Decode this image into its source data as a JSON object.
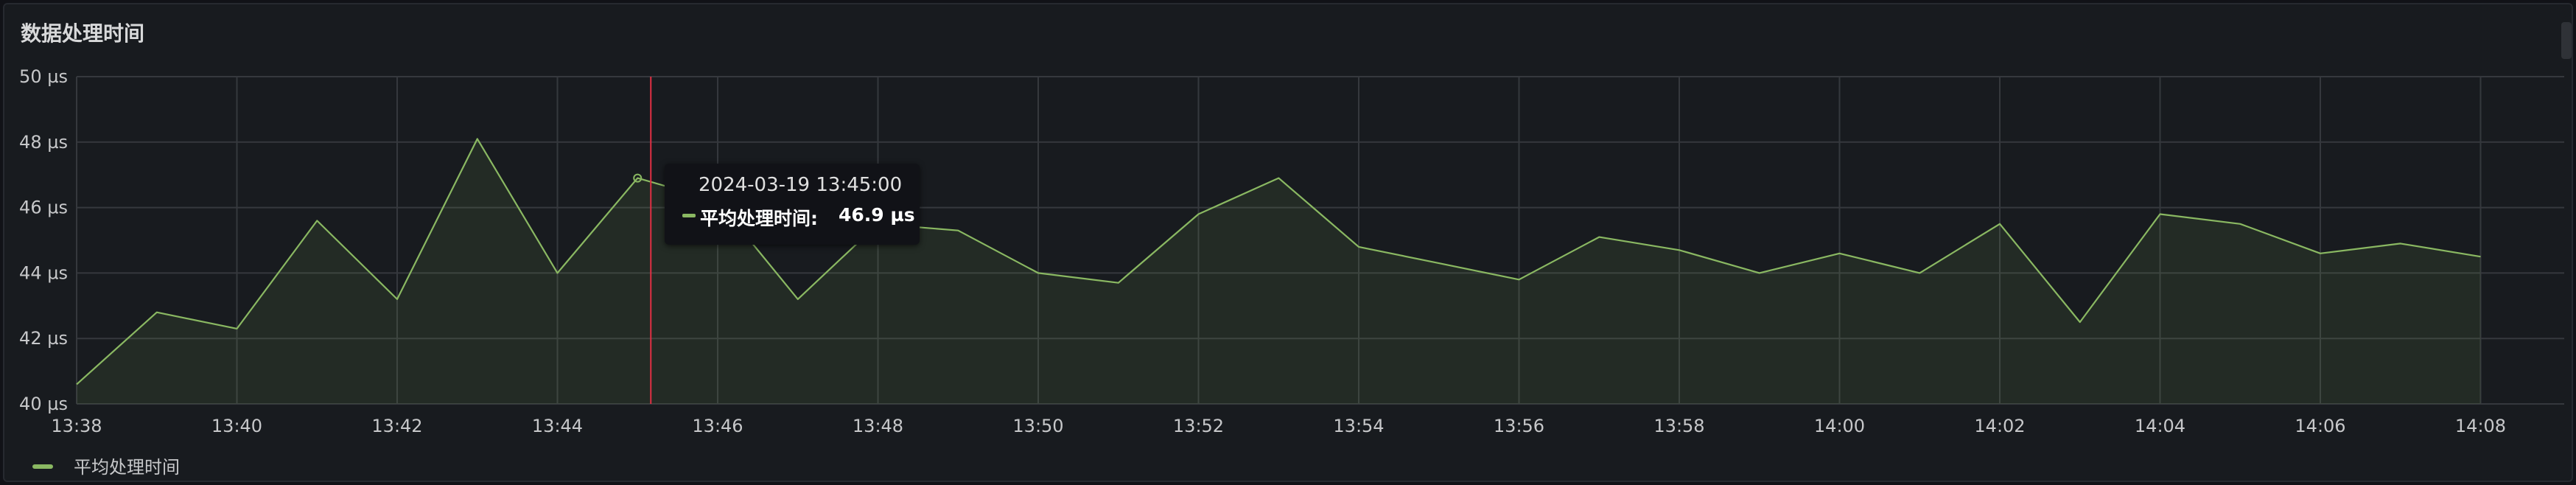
{
  "panel": {
    "title": "数据处理时间"
  },
  "colors": {
    "series": "#8ab862",
    "cursor": "#e02f44",
    "grid": "#35383d",
    "background": "#181b1f"
  },
  "tooltip": {
    "time": "2024-03-19 13:45:00",
    "series_name": "平均处理时间:",
    "value": "46.9 µs"
  },
  "legend": {
    "items": [
      "平均处理时间"
    ]
  },
  "chart_data": {
    "type": "area",
    "title": "数据处理时间",
    "x": [
      "13:38",
      "13:39",
      "13:40",
      "13:41",
      "13:42",
      "13:43",
      "13:44",
      "13:45",
      "13:46",
      "13:47",
      "13:48",
      "13:49",
      "13:50",
      "13:51",
      "13:52",
      "13:53",
      "13:54",
      "13:55",
      "13:56",
      "13:57",
      "13:58",
      "13:59",
      "14:00",
      "14:01",
      "14:02",
      "14:03",
      "14:04",
      "14:05",
      "14:06",
      "14:07",
      "14:08"
    ],
    "series": [
      {
        "name": "平均处理时间",
        "unit": "µs",
        "values": [
          40.6,
          42.8,
          42.3,
          45.6,
          43.2,
          48.1,
          44.0,
          46.9,
          46.2,
          43.2,
          45.5,
          45.3,
          44.0,
          43.7,
          45.8,
          46.9,
          44.8,
          44.3,
          43.8,
          45.1,
          44.7,
          44.0,
          44.6,
          44.0,
          45.5,
          42.5,
          45.8,
          45.5,
          44.6,
          44.9,
          44.5
        ]
      }
    ],
    "xticks": [
      "13:38",
      "13:40",
      "13:42",
      "13:44",
      "13:46",
      "13:48",
      "13:50",
      "13:52",
      "13:54",
      "13:56",
      "13:58",
      "14:00",
      "14:02",
      "14:04",
      "14:06",
      "14:08"
    ],
    "yticks": [
      "40 µs",
      "42 µs",
      "44 µs",
      "46 µs",
      "48 µs",
      "50 µs"
    ],
    "ytick_values": [
      40,
      42,
      44,
      46,
      48,
      50
    ],
    "ylim": [
      40,
      50
    ],
    "xrange_minutes": [
      0,
      31
    ],
    "grid": true,
    "legend_position": "bottom-left",
    "cursor_x": "13:45"
  }
}
